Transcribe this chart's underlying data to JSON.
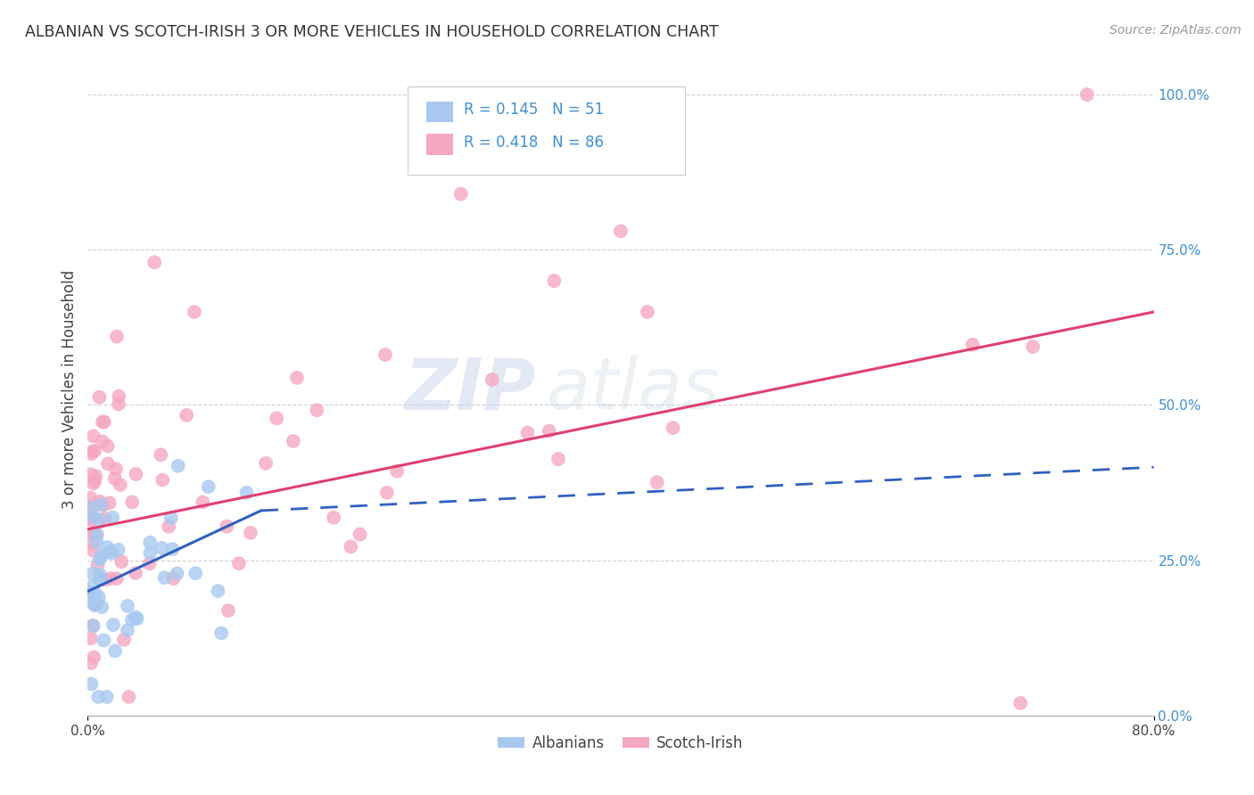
{
  "title": "ALBANIAN VS SCOTCH-IRISH 3 OR MORE VEHICLES IN HOUSEHOLD CORRELATION CHART",
  "source": "Source: ZipAtlas.com",
  "ylabel": "3 or more Vehicles in Household",
  "watermark_zip": "ZIP",
  "watermark_atlas": "atlas",
  "legend_r1": "R = 0.145",
  "legend_n1": "N = 51",
  "legend_r2": "R = 0.418",
  "legend_n2": "N = 86",
  "blue_scatter": "#A8C8F0",
  "pink_scatter": "#F5A8C0",
  "line_blue": "#3060C0",
  "line_pink": "#E04070",
  "right_axis_color": "#4090D0",
  "xmin": 0.0,
  "xmax": 80.0,
  "ymin": 0.0,
  "ymax": 105.0,
  "background_color": "#ffffff",
  "grid_color": "#cccccc",
  "alb_line_start_x": 0.0,
  "alb_line_start_y": 20.0,
  "alb_line_solid_end_x": 13.0,
  "alb_line_solid_end_y": 33.0,
  "alb_line_dash_end_x": 80.0,
  "alb_line_dash_end_y": 40.0,
  "si_line_start_x": 0.0,
  "si_line_start_y": 30.0,
  "si_line_end_x": 80.0,
  "si_line_end_y": 65.0
}
